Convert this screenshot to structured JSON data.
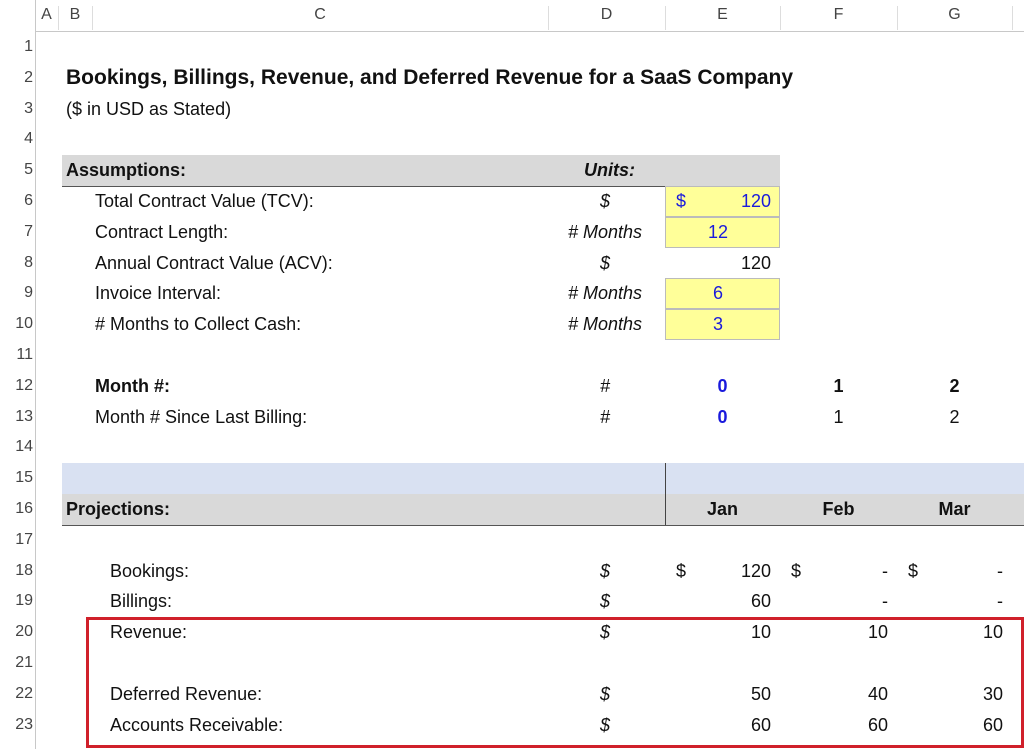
{
  "column_headers": [
    "A",
    "B",
    "C",
    "D",
    "E",
    "F",
    "G"
  ],
  "row_numbers": [
    1,
    2,
    3,
    4,
    5,
    6,
    7,
    8,
    9,
    10,
    11,
    12,
    13,
    14,
    15,
    16,
    17,
    18,
    19,
    20,
    21,
    22,
    23
  ],
  "title": "Bookings, Billings, Revenue, and Deferred Revenue for a SaaS Company",
  "subtitle": "($ in USD as Stated)",
  "assumptions": {
    "header": "Assumptions:",
    "units_header": "Units:",
    "rows": [
      {
        "label": "Total Contract Value (TCV):",
        "unit": "$",
        "currency": "$",
        "value": 120,
        "highlight": true
      },
      {
        "label": "Contract Length:",
        "unit": "# Months",
        "value": 12,
        "highlight": true
      },
      {
        "label": "Annual Contract Value (ACV):",
        "unit": "$",
        "value": 120,
        "highlight": false
      },
      {
        "label": "Invoice Interval:",
        "unit": "# Months",
        "value": 6,
        "highlight": true
      },
      {
        "label": "# Months to Collect Cash:",
        "unit": "# Months",
        "value": 3,
        "highlight": true
      }
    ]
  },
  "months": {
    "rows": [
      {
        "label": "Month #:",
        "unit": "#",
        "values": [
          0,
          1,
          2
        ],
        "bold": true
      },
      {
        "label": "Month # Since Last Billing:",
        "unit": "#",
        "values": [
          0,
          1,
          2
        ],
        "bold": false
      }
    ]
  },
  "projections": {
    "header": "Projections:",
    "months": [
      "Jan",
      "Feb",
      "Mar"
    ],
    "rows": [
      {
        "label": "Bookings:",
        "unit": "$",
        "currency": "$",
        "values": [
          120,
          "-",
          "-"
        ]
      },
      {
        "label": "Billings:",
        "unit": "$",
        "values": [
          60,
          "-",
          "-"
        ]
      },
      {
        "label": "Revenue:",
        "unit": "$",
        "values": [
          10,
          10,
          10
        ]
      },
      {
        "label": "Deferred Revenue:",
        "unit": "$",
        "values": [
          50,
          40,
          30
        ]
      },
      {
        "label": "Accounts Receivable:",
        "unit": "$",
        "values": [
          60,
          60,
          60
        ]
      }
    ]
  }
}
